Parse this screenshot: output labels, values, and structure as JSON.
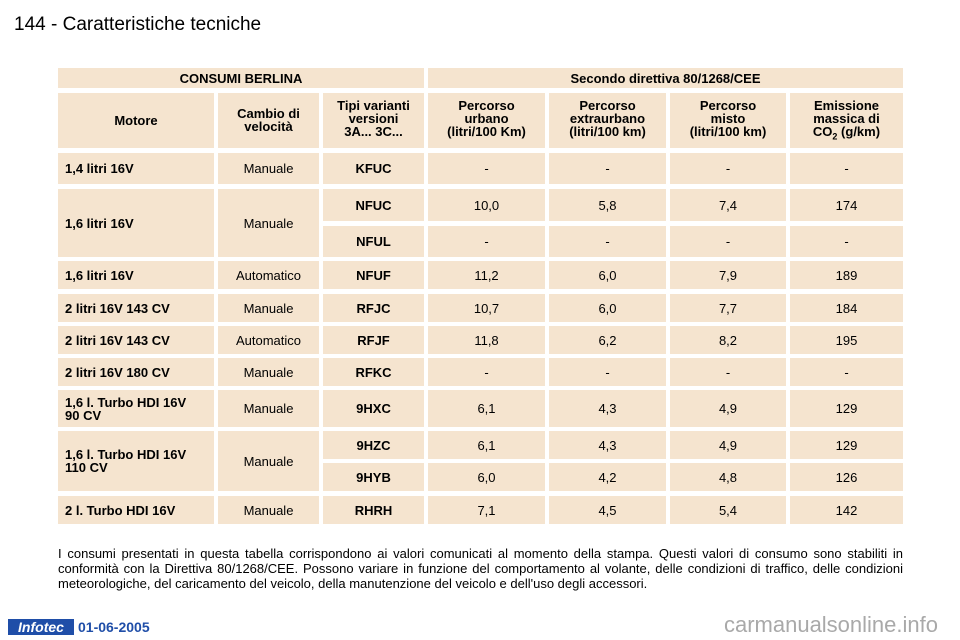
{
  "page": {
    "number": "144",
    "separator": "-",
    "title": "Caratteristiche tecniche"
  },
  "table": {
    "title_left": "CONSUMI BERLINA",
    "title_right": "Secondo direttiva 80/1268/CEE",
    "headers": {
      "motore": "Motore",
      "cambio": "Cambio di\nvelocità",
      "tipi": "Tipi varianti\nversioni\n3A... 3C...",
      "urbano": "Percorso\nurbano\n(litri/100 Km)",
      "extraurbano": "Percorso\nextraurbano\n(litri/100 km)",
      "misto": "Percorso\nmisto\n(litri/100 km)",
      "emissione_line1": "Emissione\nmassica di",
      "emissione_co": "CO",
      "emissione_sub": "2",
      "emissione_unit": " (g/km)"
    },
    "rows": [
      {
        "motore": "1,4 litri 16V",
        "cambio": "Manuale",
        "tipo": "KFUC",
        "urbano": "-",
        "extraurbano": "-",
        "misto": "-",
        "co2": "-"
      },
      {
        "motore": "1,6 litri 16V",
        "cambio": "Manuale",
        "tipo": "NFUC",
        "urbano": "10,0",
        "extraurbano": "5,8",
        "misto": "7,4",
        "co2": "174"
      },
      {
        "tipo": "NFUL",
        "urbano": "-",
        "extraurbano": "-",
        "misto": "-",
        "co2": "-"
      },
      {
        "motore": "1,6 litri 16V",
        "cambio": "Automatico",
        "tipo": "NFUF",
        "urbano": "11,2",
        "extraurbano": "6,0",
        "misto": "7,9",
        "co2": "189"
      },
      {
        "motore": "2 litri 16V 143 CV",
        "cambio": "Manuale",
        "tipo": "RFJC",
        "urbano": "10,7",
        "extraurbano": "6,0",
        "misto": "7,7",
        "co2": "184"
      },
      {
        "motore": "2 litri 16V 143 CV",
        "cambio": "Automatico",
        "tipo": "RFJF",
        "urbano": "11,8",
        "extraurbano": "6,2",
        "misto": "8,2",
        "co2": "195"
      },
      {
        "motore": "2 litri 16V 180 CV",
        "cambio": "Manuale",
        "tipo": "RFKC",
        "urbano": "-",
        "extraurbano": "-",
        "misto": "-",
        "co2": "-"
      },
      {
        "motore": "1,6 l. Turbo HDI 16V\n90 CV",
        "cambio": "Manuale",
        "tipo": "9HXC",
        "urbano": "6,1",
        "extraurbano": "4,3",
        "misto": "4,9",
        "co2": "129"
      },
      {
        "motore": "1,6 l. Turbo HDI 16V\n110 CV",
        "cambio": "Manuale",
        "tipo": "9HZC",
        "urbano": "6,1",
        "extraurbano": "4,3",
        "misto": "4,9",
        "co2": "129"
      },
      {
        "tipo": "9HYB",
        "urbano": "6,0",
        "extraurbano": "4,2",
        "misto": "4,8",
        "co2": "126"
      },
      {
        "motore": "2 l. Turbo HDI 16V",
        "cambio": "Manuale",
        "tipo": "RHRH",
        "urbano": "7,1",
        "extraurbano": "4,5",
        "misto": "5,4",
        "co2": "142"
      }
    ]
  },
  "note": "I consumi presentati in questa tabella corrispondono ai valori comunicati al momento della stampa. Questi valori di consumo sono stabiliti in conformità con la Direttiva 80/1268/CEE. Possono variare in funzione del comportamento al volante, delle condizioni di traffico, delle condizioni meteorologiche, del caricamento del veicolo, della manutenzione del veicolo e dell'uso degli accessori.",
  "footer": {
    "logo": "Infotec",
    "date": "01-06-2005",
    "watermark": "carmanualsonline.info"
  }
}
